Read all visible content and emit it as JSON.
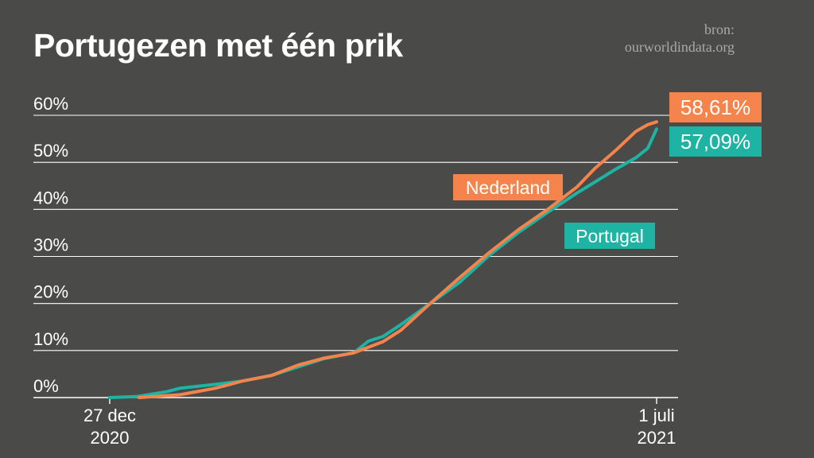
{
  "title": "Portugezen met één prik",
  "source": {
    "line1": "bron:",
    "line2": "ourworldindata.org"
  },
  "colors": {
    "background": "#4a4a48",
    "nederland": "#f4844c",
    "portugal": "#1fb3a4",
    "grid": "#ffffff"
  },
  "chart_data": {
    "type": "line",
    "title": "Portugezen met één prik",
    "xlabel": "",
    "ylabel": "",
    "xlim": [
      "2020-12-27",
      "2021-07-01"
    ],
    "ylim": [
      0,
      60
    ],
    "y_ticks": [
      0,
      10,
      20,
      30,
      40,
      50,
      60
    ],
    "y_tick_labels": [
      "0%",
      "10%",
      "20%",
      "30%",
      "40%",
      "50%",
      "60%"
    ],
    "x_ticks": [
      {
        "x": "2020-12-27",
        "line1": "27 dec",
        "line2": "2020"
      },
      {
        "x": "2021-07-01",
        "line1": "1 juli",
        "line2": "2021"
      }
    ],
    "grid": true,
    "series": [
      {
        "name": "Nederland",
        "color": "#f4844c",
        "end_label": "58,61%",
        "x": [
          "2021-01-06",
          "2021-01-20",
          "2021-02-01",
          "2021-02-10",
          "2021-02-20",
          "2021-03-01",
          "2021-03-10",
          "2021-03-20",
          "2021-03-30",
          "2021-04-05",
          "2021-04-15",
          "2021-04-25",
          "2021-05-05",
          "2021-05-15",
          "2021-05-25",
          "2021-06-04",
          "2021-06-10",
          "2021-06-17",
          "2021-06-24",
          "2021-06-28",
          "2021-07-01"
        ],
        "y": [
          0,
          0.6,
          2,
          3.5,
          4.7,
          6.9,
          8.4,
          9.5,
          11.9,
          14.3,
          20,
          25.5,
          30.8,
          35.7,
          40,
          44.8,
          48.7,
          52.5,
          56.6,
          58,
          58.61
        ]
      },
      {
        "name": "Portugal",
        "color": "#1fb3a4",
        "end_label": "57,09%",
        "x": [
          "2020-12-27",
          "2021-01-05",
          "2021-01-15",
          "2021-01-20",
          "2021-02-01",
          "2021-02-10",
          "2021-02-20",
          "2021-03-01",
          "2021-03-10",
          "2021-03-20",
          "2021-03-25",
          "2021-03-30",
          "2021-04-05",
          "2021-04-15",
          "2021-04-25",
          "2021-05-05",
          "2021-05-15",
          "2021-05-25",
          "2021-06-04",
          "2021-06-10",
          "2021-06-17",
          "2021-06-24",
          "2021-06-28",
          "2021-07-01"
        ],
        "y": [
          0,
          0.2,
          1.2,
          2,
          2.8,
          3.5,
          4.7,
          6.5,
          8.3,
          9.5,
          12,
          13,
          15.5,
          20,
          24.5,
          30.2,
          35.1,
          39.4,
          43.5,
          45.8,
          48.5,
          51,
          53,
          57.09
        ]
      }
    ],
    "annotations": [
      {
        "text": "Nederland",
        "series": "Nederland"
      },
      {
        "text": "Portugal",
        "series": "Portugal"
      }
    ]
  }
}
